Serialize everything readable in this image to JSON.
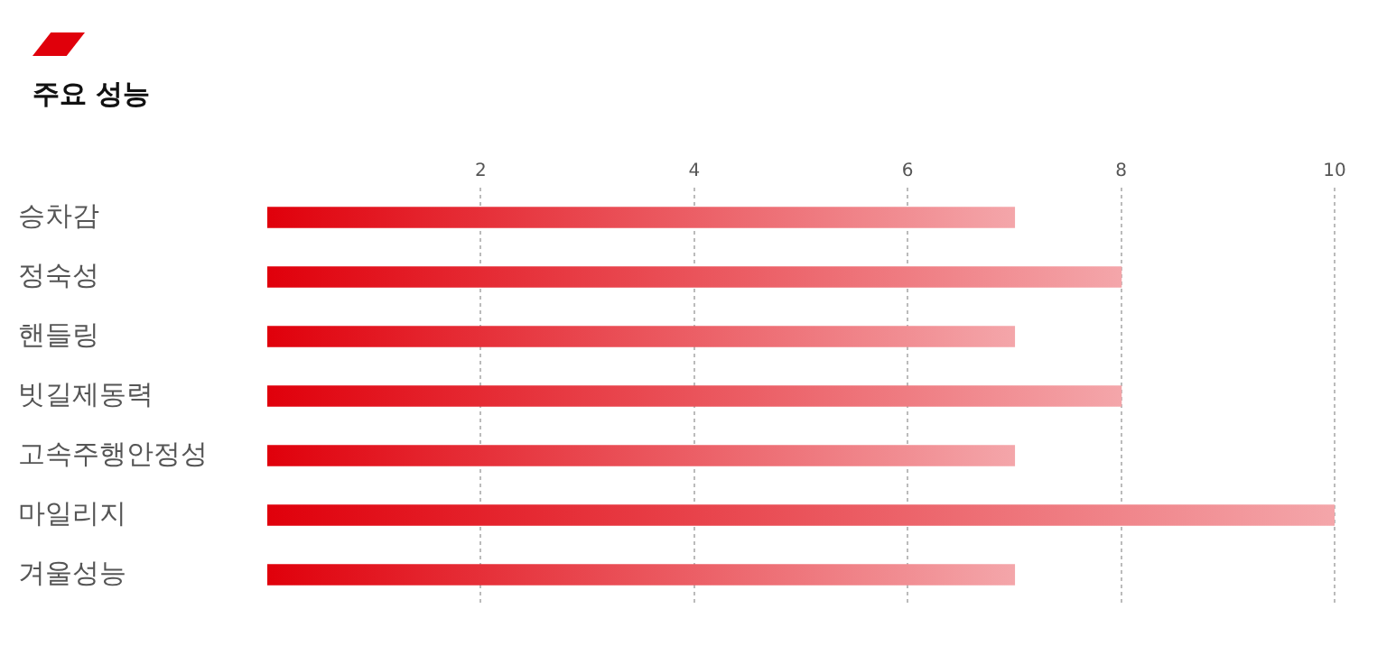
{
  "chart_data": {
    "type": "bar",
    "title": "주요 성능",
    "orientation": "horizontal",
    "categories": [
      "승차감",
      "정숙성",
      "핸들링",
      "빗길제동력",
      "고속주행안정성",
      "마일리지",
      "겨울성능"
    ],
    "values": [
      7,
      8,
      7,
      8,
      7,
      10,
      7
    ],
    "color": "#e0000b",
    "xlim": [
      0,
      10
    ],
    "xticks": [
      2,
      4,
      6,
      8,
      10
    ],
    "grid": "x",
    "legend": false
  }
}
